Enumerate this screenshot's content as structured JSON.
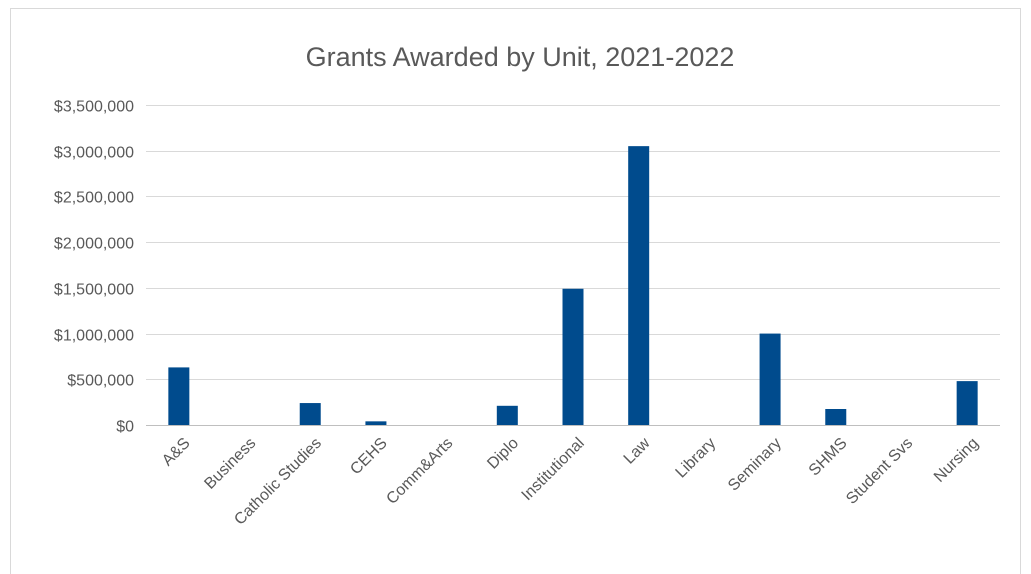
{
  "chart_data": {
    "type": "bar",
    "title": "Grants Awarded by Unit, 2021-2022",
    "xlabel": "",
    "ylabel": "",
    "categories": [
      "A&S",
      "Business",
      "Catholic Studies",
      "CEHS",
      "Comm&Arts",
      "Diplo",
      "Institutional",
      "Law",
      "Library",
      "Seminary",
      "SHMS",
      "Student Svs",
      "Nursing"
    ],
    "values": [
      630000,
      0,
      240000,
      40000,
      0,
      210000,
      1490000,
      3050000,
      0,
      1000000,
      175000,
      0,
      480000
    ],
    "ylim": [
      0,
      3500000
    ],
    "yticks": [
      0,
      500000,
      1000000,
      1500000,
      2000000,
      2500000,
      3000000,
      3500000
    ],
    "ytick_labels": [
      "$0",
      "$500,000",
      "$1,000,000",
      "$1,500,000",
      "$2,000,000",
      "$2,500,000",
      "$3,000,000",
      "$3,500,000"
    ],
    "grid": true,
    "legend": "none",
    "bar_color": "#004B8D"
  }
}
